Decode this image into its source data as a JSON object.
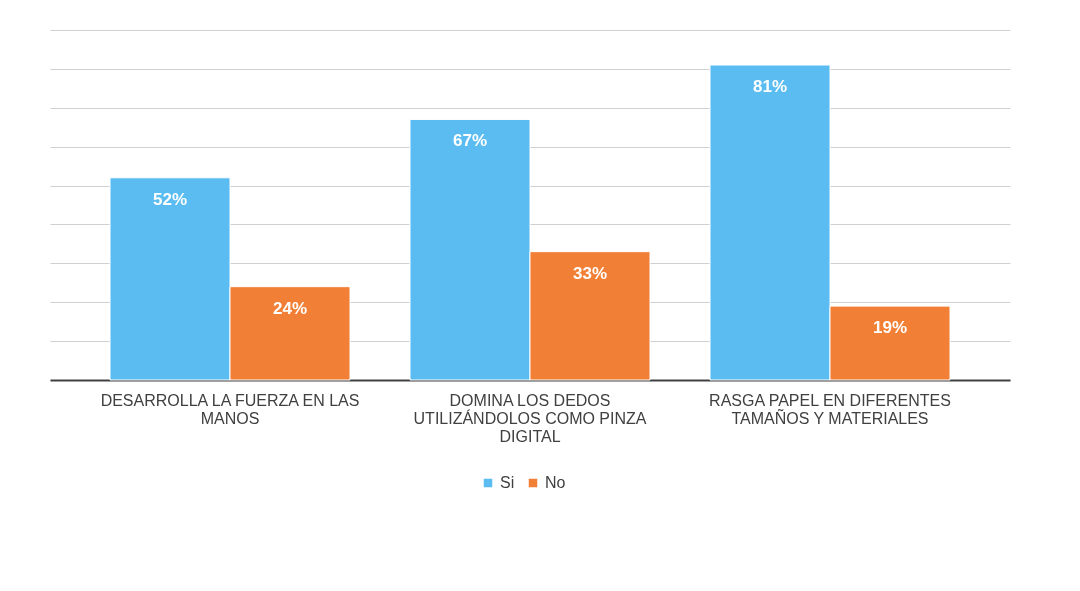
{
  "chart_data": {
    "type": "bar",
    "categories": [
      "DESARROLLA LA FUERZA EN LAS MANOS",
      "DOMINA LOS DEDOS UTILIZÁNDOLOS COMO PINZA DIGITAL",
      "RASGA PAPEL EN DIFERENTES TAMAÑOS Y MATERIALES"
    ],
    "series": [
      {
        "name": "Si",
        "color": "#5bbcf2",
        "values": [
          52,
          67,
          81
        ],
        "value_labels": [
          "52%",
          "67%",
          "81%"
        ]
      },
      {
        "name": "No",
        "color": "#f27f36",
        "values": [
          24,
          33,
          19
        ],
        "value_labels": [
          "24%",
          "33%",
          "19%"
        ]
      }
    ],
    "grid": "y",
    "legend": "bottom",
    "tick_labels": "x"
  }
}
